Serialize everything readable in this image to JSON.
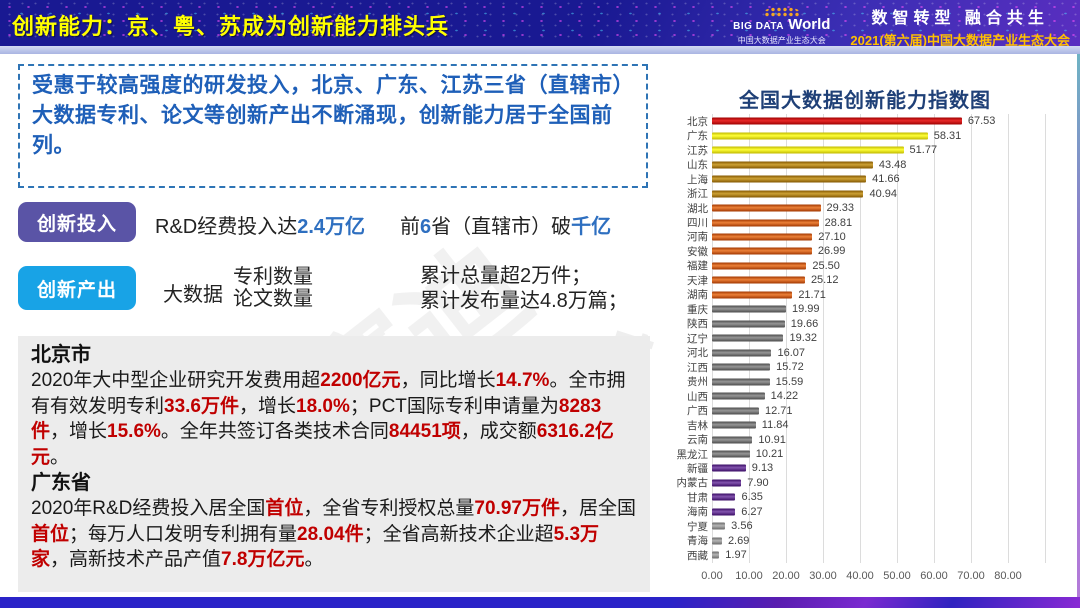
{
  "header": {
    "title": "创新能力：京、粤、苏成为创新能力排头兵",
    "logo_line1": "BIG DATA",
    "logo_line1b": "World",
    "logo_line2": "中国大数据产业生态大会",
    "slogan": "数智转型 融合共生",
    "event": "2021(第六届)中国大数据产业生态大会"
  },
  "intro": "受惠于较高强度的研发投入，北京、广东、江苏三省（直辖市）大数据专利、论文等创新产出不断涌现，创新能力居于全国前列。",
  "rows": {
    "input": {
      "badge": "创新投入",
      "segments1": [
        {
          "t": "R&D经费投入达"
        },
        {
          "t": "2.4万亿",
          "hl": true
        }
      ],
      "segments2": [
        {
          "t": "前"
        },
        {
          "t": "6",
          "hl": true
        },
        {
          "t": "省（直辖市）破"
        },
        {
          "t": "千亿",
          "hl": true
        }
      ]
    },
    "output": {
      "badge": "创新产出",
      "label": "大数据",
      "stack": [
        "专利数量",
        "论文数量"
      ],
      "results": [
        "累计总量超2万件；",
        "累计发布量达4.8万篇；"
      ]
    }
  },
  "details": {
    "beijing": {
      "heading": "北京市",
      "segments": [
        {
          "t": "2020年大中型企业研究开发费用超"
        },
        {
          "t": "2200亿元",
          "hl": true
        },
        {
          "t": "，同比增长"
        },
        {
          "t": "14.7%",
          "hl": true
        },
        {
          "t": "。全市拥有有效发明专利"
        },
        {
          "t": "33.6万件",
          "hl": true
        },
        {
          "t": "，增长"
        },
        {
          "t": "18.0%",
          "hl": true
        },
        {
          "t": "；PCT国际专利申请量为"
        },
        {
          "t": "8283件",
          "hl": true
        },
        {
          "t": "，增长"
        },
        {
          "t": "15.6%",
          "hl": true
        },
        {
          "t": "。全年共签订各类技术合同"
        },
        {
          "t": "84451项",
          "hl": true
        },
        {
          "t": "，成交额"
        },
        {
          "t": "6316.2亿元",
          "hl": true
        },
        {
          "t": "。"
        }
      ]
    },
    "guangdong": {
      "heading": "广东省",
      "segments": [
        {
          "t": "2020年R&D经费投入居全国"
        },
        {
          "t": "首位",
          "hl": true
        },
        {
          "t": "，全省专利授权总量"
        },
        {
          "t": "70.97万件",
          "hl": true
        },
        {
          "t": "，居全国"
        },
        {
          "t": "首位",
          "hl": true
        },
        {
          "t": "；每万人口发明专利拥有量"
        },
        {
          "t": "28.04件",
          "hl": true
        },
        {
          "t": "；全省高新技术企业超"
        },
        {
          "t": "5.3万家",
          "hl": true
        },
        {
          "t": "，高新技术产品产值"
        },
        {
          "t": "7.8万亿元",
          "hl": true
        },
        {
          "t": "。"
        }
      ]
    }
  },
  "chart_data": {
    "type": "bar",
    "orientation": "horizontal",
    "title": "全国大数据创新能力指数图",
    "categories": [
      "北京",
      "广东",
      "江苏",
      "山东",
      "上海",
      "浙江",
      "湖北",
      "四川",
      "河南",
      "安徽",
      "福建",
      "天津",
      "湖南",
      "重庆",
      "陕西",
      "辽宁",
      "河北",
      "江西",
      "贵州",
      "山西",
      "广西",
      "吉林",
      "云南",
      "黑龙江",
      "新疆",
      "内蒙古",
      "甘肃",
      "海南",
      "宁夏",
      "青海",
      "西藏"
    ],
    "values": [
      67.53,
      58.31,
      51.77,
      43.48,
      41.66,
      40.94,
      29.33,
      28.81,
      27.1,
      26.99,
      25.5,
      25.12,
      21.71,
      19.99,
      19.66,
      19.32,
      16.07,
      15.72,
      15.59,
      14.22,
      12.71,
      11.84,
      10.91,
      10.21,
      9.13,
      7.9,
      6.35,
      6.27,
      3.56,
      2.69,
      1.97
    ],
    "colors": [
      "#c00000",
      "#e3dc11",
      "#e3dc11",
      "#a5790d",
      "#a5790d",
      "#a5790d",
      "#c45911",
      "#c45911",
      "#c45911",
      "#c45911",
      "#c45911",
      "#c45911",
      "#c45911",
      "#6e6e6e",
      "#6e6e6e",
      "#6e6e6e",
      "#6e6e6e",
      "#6e6e6e",
      "#6e6e6e",
      "#6e6e6e",
      "#6e6e6e",
      "#6e6e6e",
      "#6e6e6e",
      "#6e6e6e",
      "#5b2d86",
      "#5b2d86",
      "#5b2d86",
      "#5b2d86",
      "#8c8c8c",
      "#8c8c8c",
      "#8c8c8c"
    ],
    "xlabel": "",
    "ylabel": "",
    "xlim": [
      0,
      80
    ],
    "grid": true,
    "legend": false,
    "x_ticks": [
      "0.00",
      "10.00",
      "20.00",
      "30.00",
      "40.00",
      "50.00",
      "60.00",
      "70.00",
      "80.00"
    ]
  },
  "watermark": {
    "text1": "赛迪",
    "text2": "ccid-2014"
  },
  "colors_meta": {
    "accent_blue": "#2e6fc0",
    "accent_red": "#c00000",
    "badge_purple": "#5a54a6",
    "badge_cyan": "#18a3e6",
    "title_yellow": "#ffff00",
    "chart_title_blue": "#1f4077"
  }
}
